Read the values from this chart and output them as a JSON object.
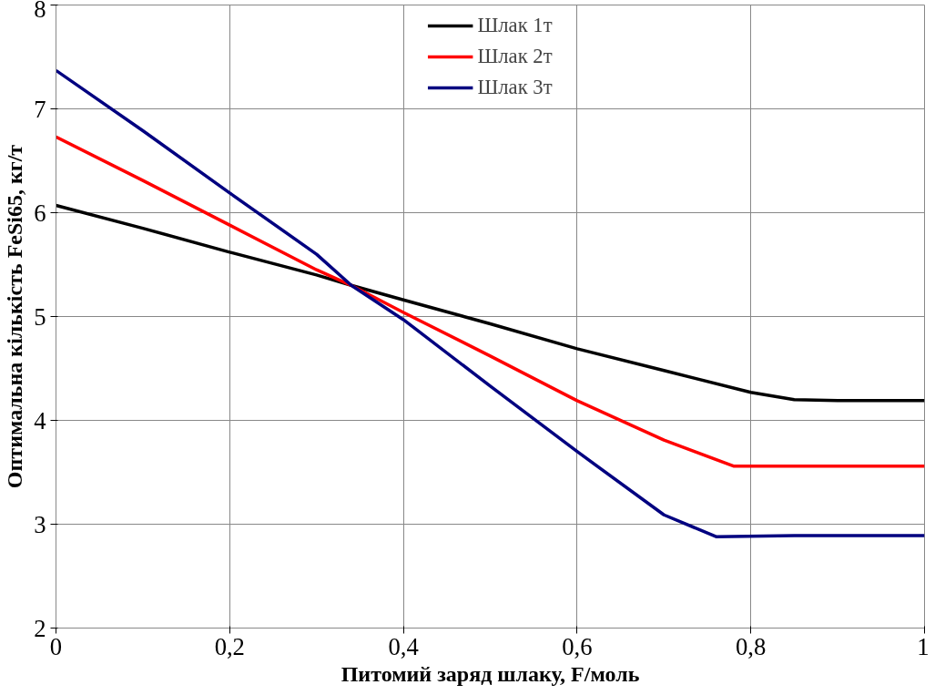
{
  "chart_data": {
    "type": "line",
    "xlabel": "Питомий заряд шлаку, F/моль",
    "ylabel": "Оптимальна кількість FeSi65, кг/т",
    "xlim": [
      0,
      1
    ],
    "ylim": [
      2,
      8
    ],
    "xticks": [
      {
        "value": 0,
        "label": "0"
      },
      {
        "value": 0.2,
        "label": "0,2"
      },
      {
        "value": 0.4,
        "label": "0,4"
      },
      {
        "value": 0.6,
        "label": "0,6"
      },
      {
        "value": 0.8,
        "label": "0,8"
      },
      {
        "value": 1,
        "label": "1"
      }
    ],
    "yticks": [
      2,
      3,
      4,
      5,
      6,
      7,
      8
    ],
    "grid": true,
    "legend": "top",
    "marker": "none",
    "line_style": "solid",
    "series": [
      {
        "name": "Шлак 1т",
        "color": "#000000",
        "x": [
          0,
          0.1,
          0.2,
          0.3,
          0.34,
          0.4,
          0.5,
          0.6,
          0.7,
          0.8,
          0.85,
          0.9,
          1
        ],
        "values": [
          6.07,
          5.85,
          5.62,
          5.4,
          5.3,
          5.16,
          4.93,
          4.69,
          4.48,
          4.27,
          4.2,
          4.19,
          4.19
        ]
      },
      {
        "name": "Шлак 2т",
        "color": "#ff0000",
        "x": [
          0,
          0.1,
          0.2,
          0.3,
          0.34,
          0.4,
          0.5,
          0.6,
          0.7,
          0.78,
          0.85,
          1
        ],
        "values": [
          6.73,
          6.31,
          5.88,
          5.45,
          5.3,
          5.04,
          4.62,
          4.19,
          3.81,
          3.56,
          3.56,
          3.56
        ]
      },
      {
        "name": "Шлак 3т",
        "color": "#000080",
        "x": [
          0,
          0.1,
          0.2,
          0.3,
          0.34,
          0.4,
          0.5,
          0.6,
          0.7,
          0.76,
          0.85,
          1
        ],
        "values": [
          7.37,
          6.79,
          6.19,
          5.6,
          5.3,
          4.97,
          4.33,
          3.7,
          3.09,
          2.88,
          2.89,
          2.89
        ]
      }
    ]
  }
}
